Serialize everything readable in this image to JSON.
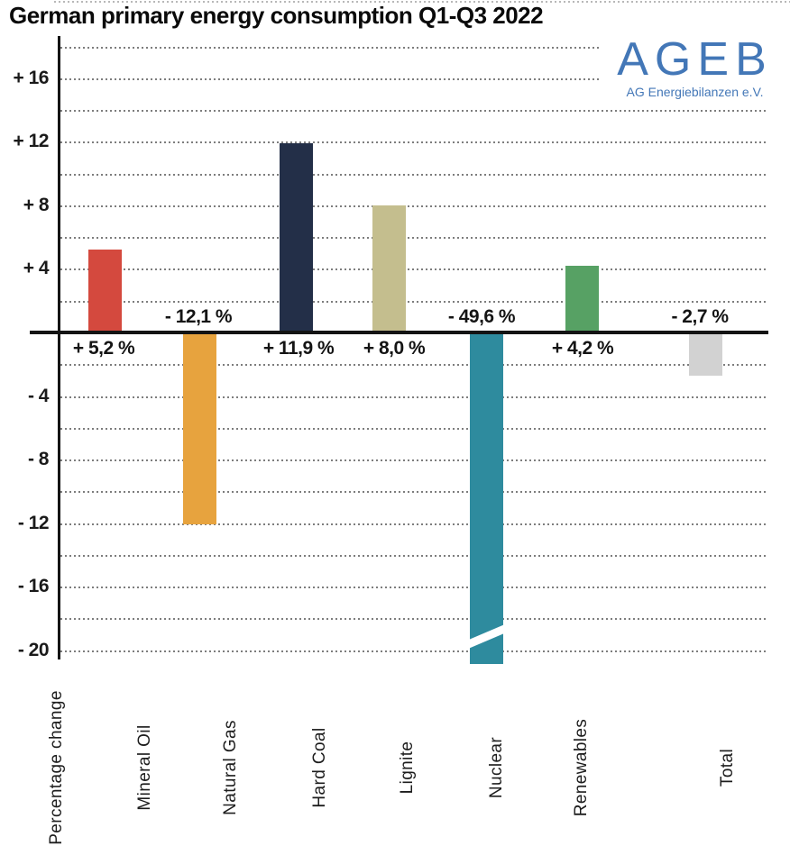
{
  "title": "German primary energy consumption Q1-Q3 2022",
  "logo": {
    "name": "AGEB",
    "subtitle": "AG Energiebilanzen e.V.",
    "color": "#4377b7"
  },
  "chart_data": {
    "type": "bar",
    "title": "German primary energy consumption Q1-Q3 2022",
    "ylabel": "Percentage change",
    "xlabel": "",
    "ylim": [
      -21,
      18
    ],
    "grid": "dotted horizontal lines every 2 units",
    "legend_position": "none",
    "categories": [
      "Mineral Oil",
      "Natural Gas",
      "Hard Coal",
      "Lignite",
      "Nuclear",
      "Renewables",
      "Total"
    ],
    "values": [
      5.2,
      -12.1,
      11.9,
      8.0,
      -49.6,
      4.2,
      -2.7
    ],
    "value_labels": [
      "+ 5,2 %",
      "- 12,1 %",
      "+ 11,9 %",
      "+ 8,0 %",
      "- 49,6 %",
      "+ 4,2 %",
      "- 2,7 %"
    ],
    "colors": [
      "#d4493e",
      "#e7a33e",
      "#232f48",
      "#c4be8e",
      "#2e8b9e",
      "#57a164",
      "#d2d2d2"
    ],
    "clipped_below_axis": [
      false,
      false,
      false,
      false,
      true,
      false,
      false
    ],
    "y_ticks": [
      {
        "value": 16,
        "label": "+ 16"
      },
      {
        "value": 12,
        "label": "+ 12"
      },
      {
        "value": 8,
        "label": "+ 8"
      },
      {
        "value": 4,
        "label": "+ 4"
      },
      {
        "value": -4,
        "label": "- 4"
      },
      {
        "value": -8,
        "label": "- 8"
      },
      {
        "value": -12,
        "label": "- 12"
      },
      {
        "value": -16,
        "label": "- 16"
      },
      {
        "value": -20,
        "label": "- 20"
      }
    ]
  }
}
